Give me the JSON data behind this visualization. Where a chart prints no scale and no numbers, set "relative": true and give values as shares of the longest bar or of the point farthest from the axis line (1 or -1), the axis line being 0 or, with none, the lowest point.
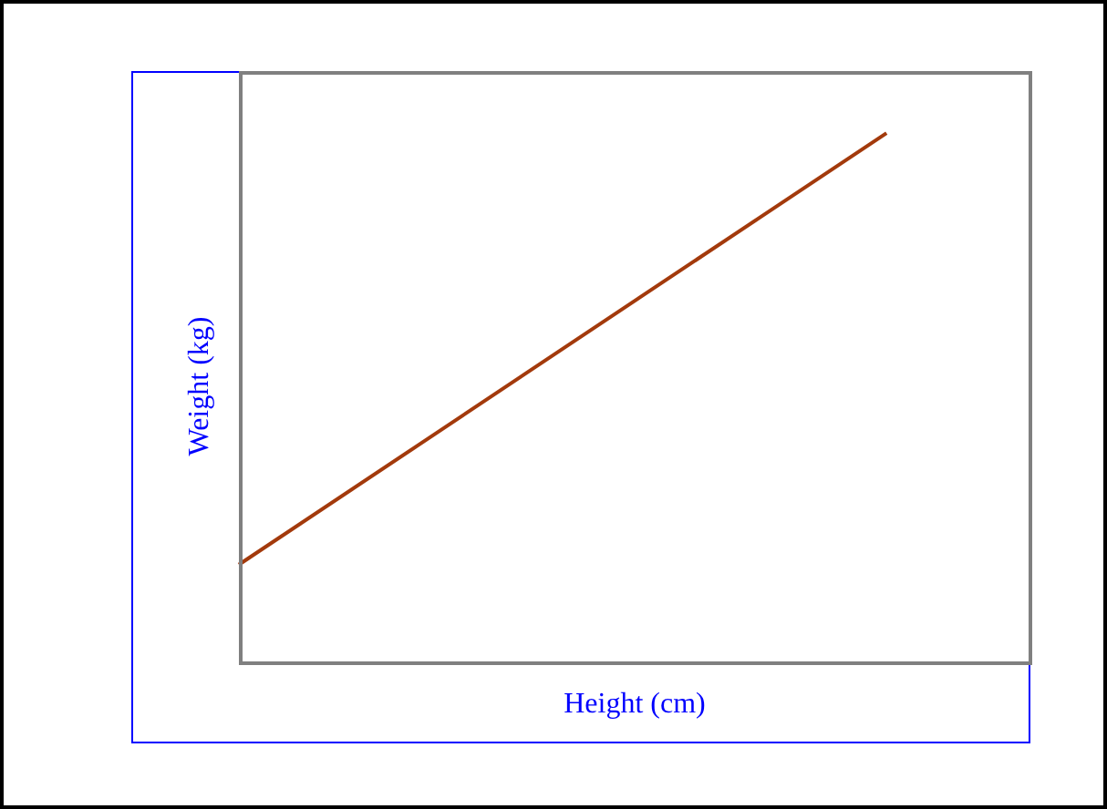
{
  "chart_data": {
    "type": "line",
    "xlabel": "Height (cm)",
    "ylabel": "Weight (kg)",
    "relative": true,
    "categories": [
      null,
      null,
      null,
      null,
      null,
      null,
      null,
      null,
      null,
      null,
      null,
      null
    ],
    "values": [
      0.186,
      null,
      null,
      null,
      null,
      null,
      null,
      null,
      null,
      1,
      null,
      null
    ],
    "color": "#a33a0c"
  }
}
